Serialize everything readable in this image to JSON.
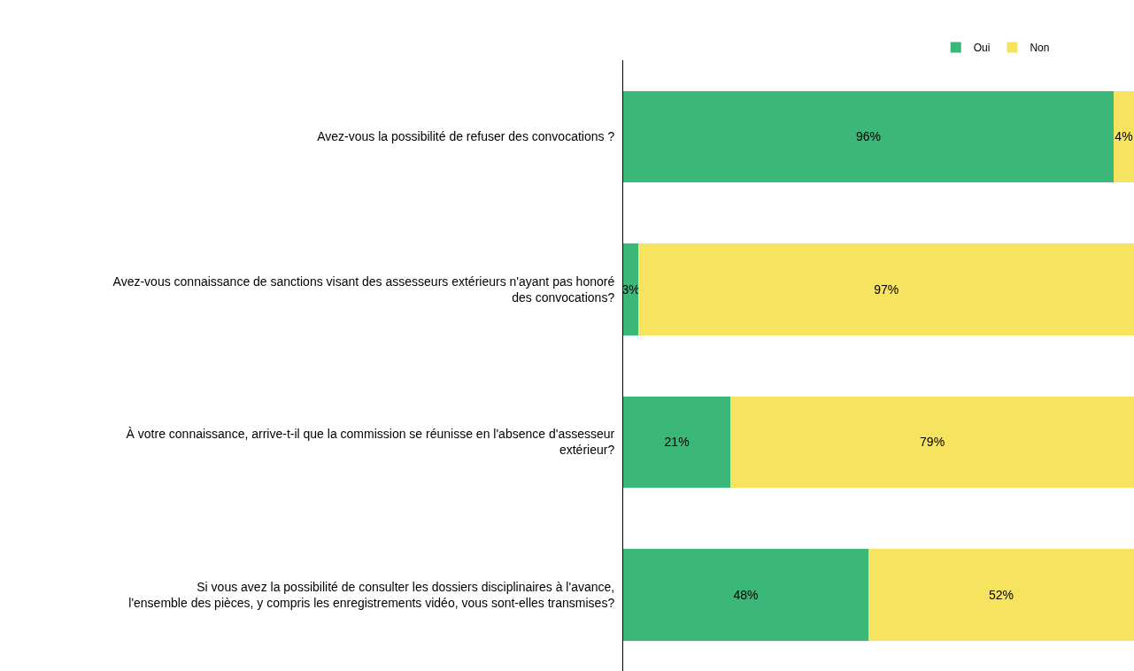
{
  "chart_data": {
    "type": "bar",
    "orientation": "horizontal",
    "stacked": true,
    "xlim": [
      0,
      100
    ],
    "tick_labels": "y",
    "legend": "top",
    "categories": [
      "Avez-vous la possibilité de refuser des convocations ?",
      "Avez-vous connaissance de sanctions visant des assesseurs extérieurs n'ayant pas honoré des convocations?",
      "À votre connaissance, arrive-t-il que la commission se réunisse en l'absence d'assesseur extérieur?",
      "Si vous avez la possibilité de consulter les dossiers disciplinaires à l'avance, l'ensemble des pièces, y compris les enregistrements vidéo, vous sont-elles transmises?"
    ],
    "series": [
      {
        "name": "Oui",
        "color": "#3bb878",
        "values": [
          96,
          3,
          21,
          48
        ],
        "value_labels": [
          "96%",
          "3%",
          "21%",
          "48%"
        ]
      },
      {
        "name": "Non",
        "color": "#f6e35f",
        "values": [
          4,
          97,
          79,
          52
        ],
        "value_labels": [
          "4%",
          "97%",
          "79%",
          "52%"
        ]
      }
    ]
  }
}
